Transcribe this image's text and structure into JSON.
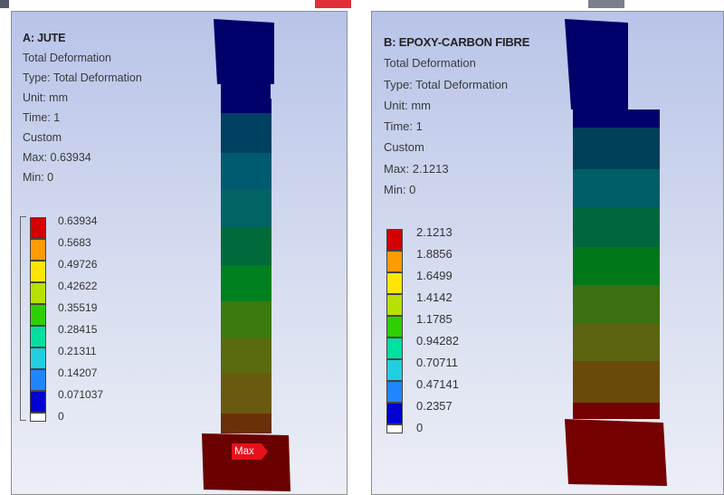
{
  "panels": [
    {
      "title": "A: JUTE",
      "lines": [
        "Total Deformation",
        "Type: Total Deformation",
        "Unit: mm",
        "Time: 1",
        "Custom",
        "Max: 0.63934",
        "Min: 0"
      ],
      "legend": [
        "0.63934",
        "0.5683",
        "0.49726",
        "0.42622",
        "0.35519",
        "0.28415",
        "0.21311",
        "0.14207",
        "0.071037",
        "0"
      ],
      "max_tag": "Max"
    },
    {
      "title": "B: EPOXY-CARBON FIBRE",
      "lines": [
        "Total Deformation",
        "Type: Total Deformation",
        "Unit: mm",
        "Time: 1",
        "Custom",
        "Max: 2.1213",
        "Min: 0"
      ],
      "legend": [
        "2.1213",
        "1.8856",
        "1.6499",
        "1.4142",
        "1.1785",
        "0.94282",
        "0.70711",
        "0.47141",
        "0.2357",
        "0"
      ]
    }
  ],
  "colors": {
    "legend_scale": [
      "#d40000",
      "#ff9a00",
      "#ffe600",
      "#b8e000",
      "#2fcf00",
      "#00e0a0",
      "#22cfe0",
      "#1f86ff",
      "#0000d0"
    ],
    "jute_bands": [
      "#00006a",
      "#004060",
      "#005a70",
      "#006464",
      "#006a3a",
      "#00801e",
      "#3a7a10",
      "#5a6a10",
      "#6a5a10",
      "#6a3008",
      "#6a0000"
    ],
    "epoxy_bands": [
      "#00006a",
      "#00405a",
      "#005e66",
      "#00663e",
      "#00781a",
      "#3c7010",
      "#5c6410",
      "#6a4a0a",
      "#740000"
    ],
    "max_tag": "#e8101b"
  }
}
